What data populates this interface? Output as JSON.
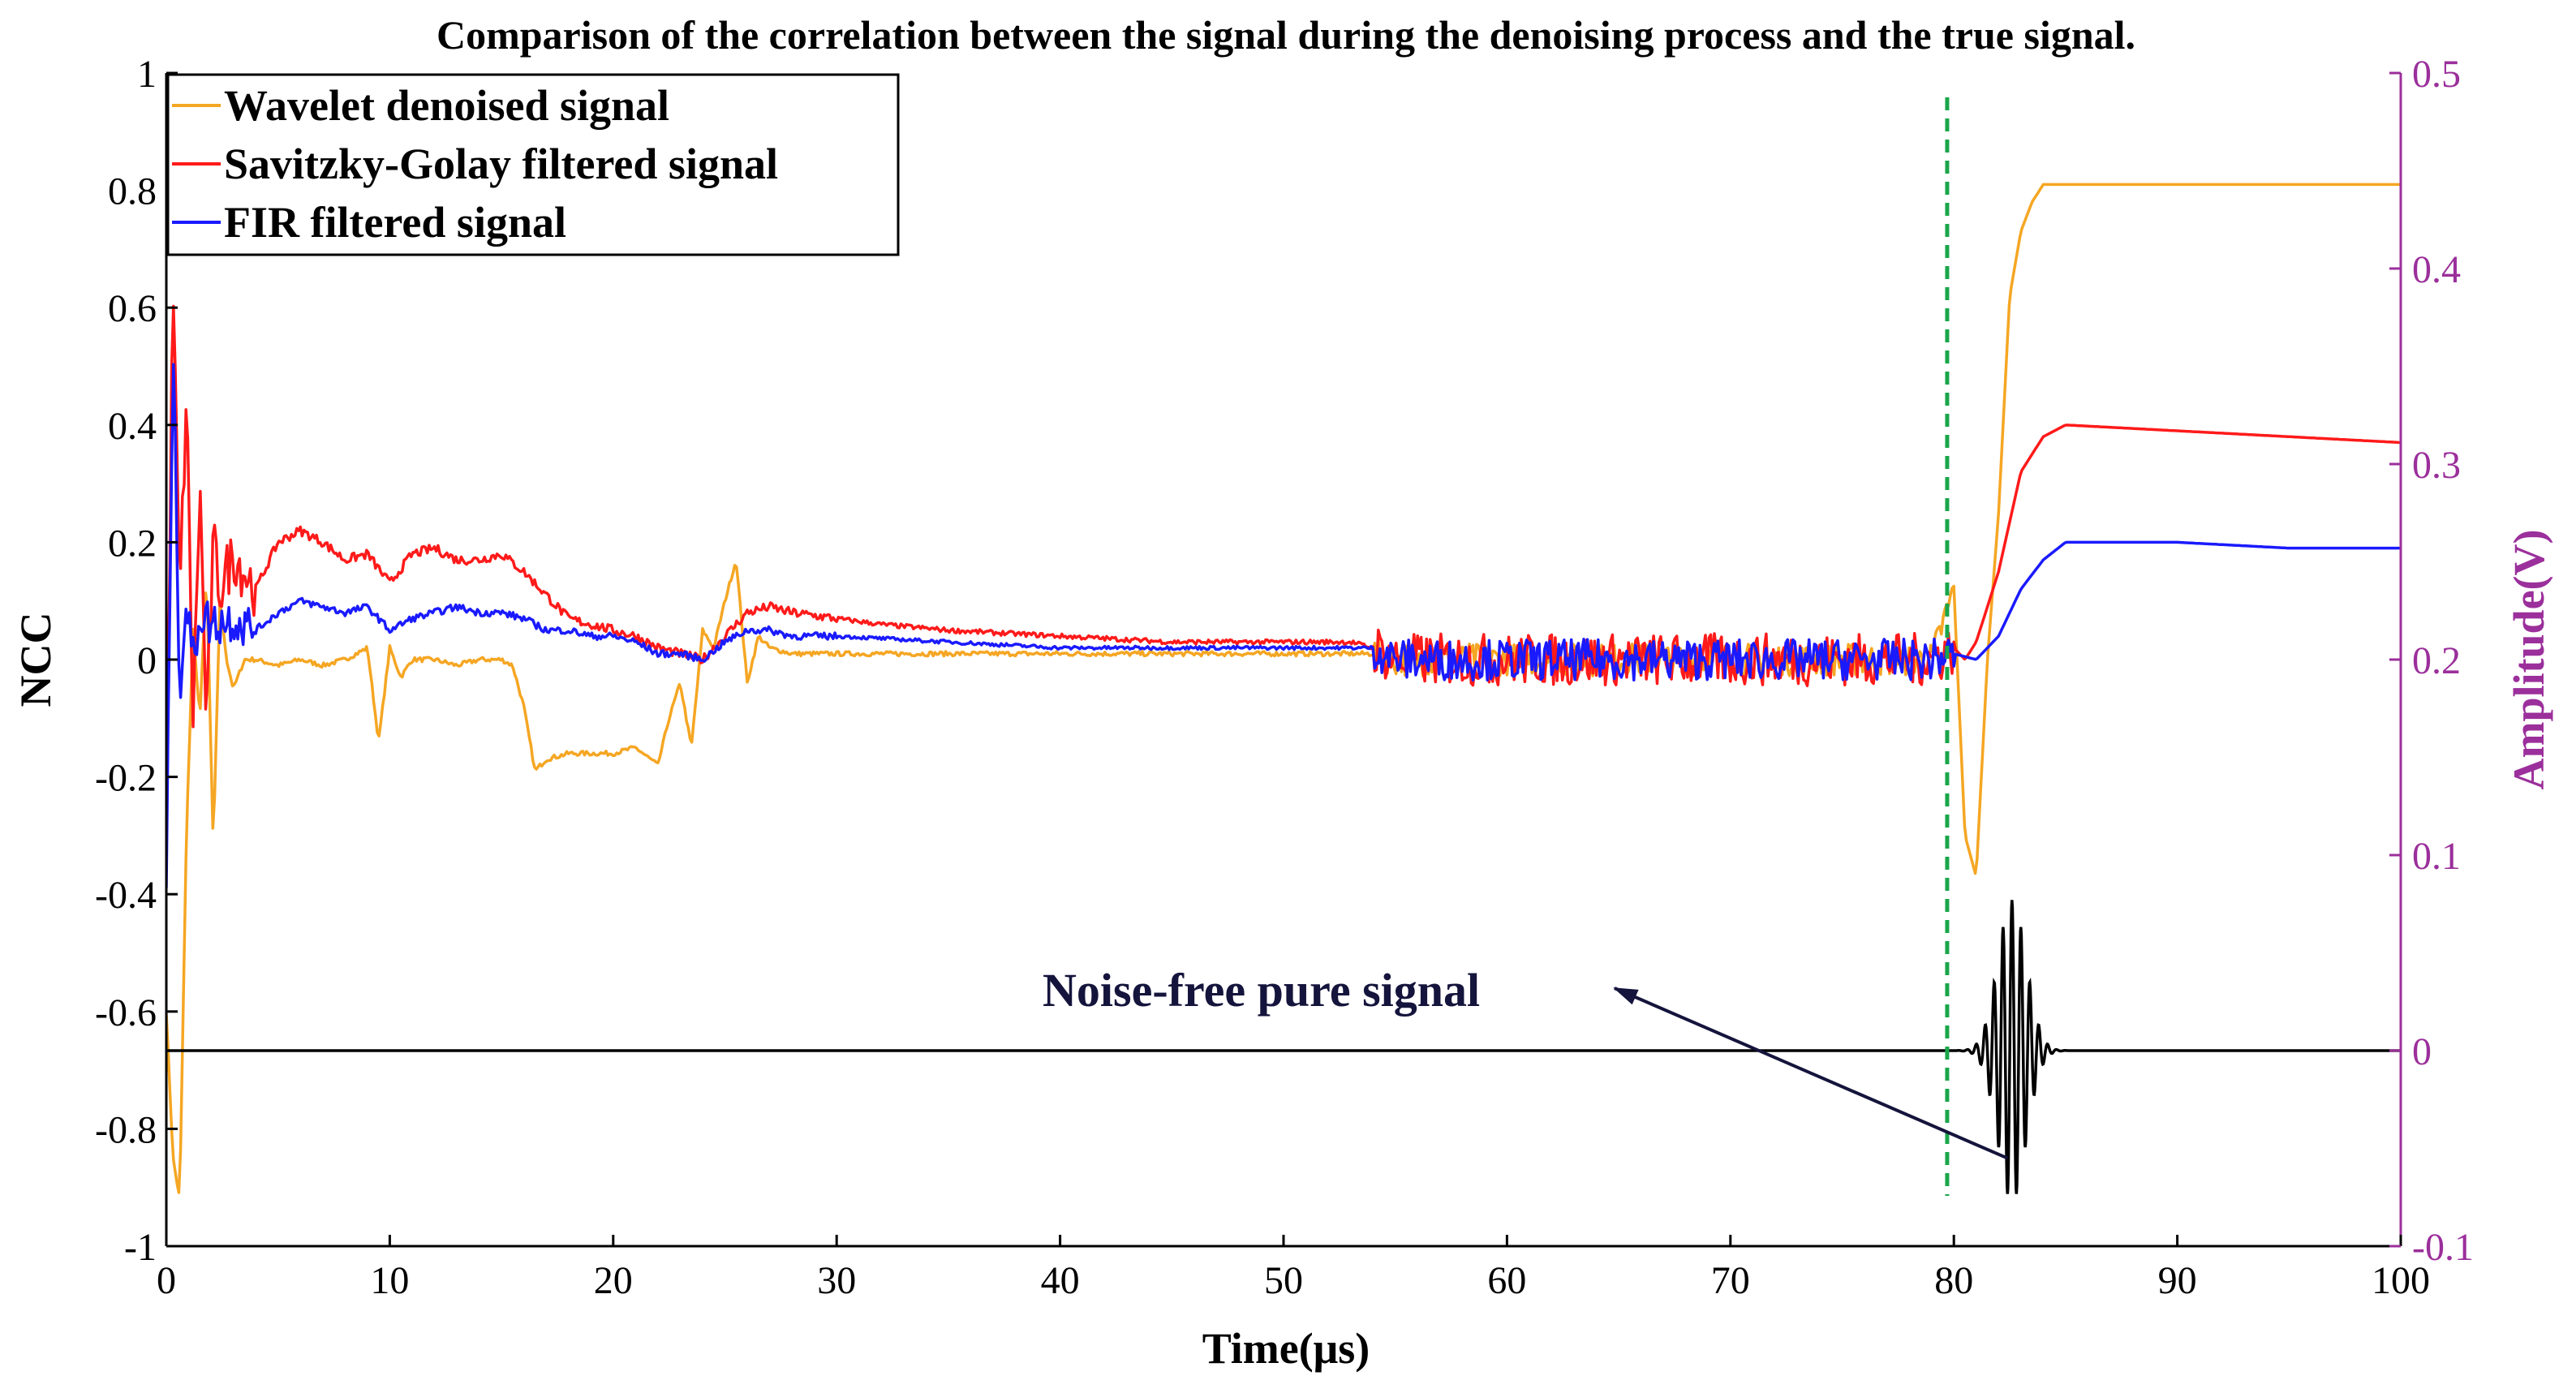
{
  "chart_data": {
    "type": "line",
    "title": "Comparison of the correlation between the signal during the denoising process and the true signal.",
    "xlabel": "Time(μs)",
    "ylabel": "NCC",
    "ylabel_right": "Amplitude(V)",
    "xlim": [
      0,
      100
    ],
    "ylim": [
      -1,
      1
    ],
    "ylim_right": [
      -0.1,
      0.5
    ],
    "x_ticks": [
      0,
      10,
      20,
      30,
      40,
      50,
      60,
      70,
      80,
      90,
      100
    ],
    "y_ticks": [
      -1,
      -0.8,
      -0.6,
      -0.4,
      -0.2,
      0,
      0.2,
      0.4,
      0.6,
      0.8,
      1
    ],
    "y_ticks_right": [
      -0.1,
      0,
      0.1,
      0.2,
      0.3,
      0.4,
      0.5
    ],
    "x_tick_labels": [
      "0",
      "10",
      "20",
      "30",
      "40",
      "50",
      "60",
      "70",
      "80",
      "90",
      "100"
    ],
    "y_tick_labels": [
      "-1",
      "-0.8",
      "-0.6",
      "-0.4",
      "-0.2",
      "0",
      "0.2",
      "0.4",
      "0.6",
      "0.8",
      "1"
    ],
    "y_tick_labels_right": [
      "-0.1",
      "0",
      "0.1",
      "0.2",
      "0.3",
      "0.4",
      "0.5"
    ],
    "legend_position": "top-left",
    "series": [
      {
        "name": "Wavelet denoised signal",
        "color": "#f5a623",
        "axis": "left",
        "x": [
          0,
          0.3,
          0.6,
          0.9,
          1.2,
          1.5,
          1.8,
          2.1,
          2.4,
          2.7,
          3.0,
          3.5,
          4,
          5,
          6,
          7,
          8,
          9,
          9.5,
          10,
          10.5,
          11,
          12,
          13,
          14,
          15,
          15.5,
          16,
          16.5,
          17,
          18,
          19,
          20,
          21,
          22,
          22.5,
          23,
          23.5,
          24,
          24.5,
          25,
          25.5,
          26,
          26.5,
          27,
          28,
          30,
          35,
          40,
          45,
          50,
          54,
          55,
          60,
          65,
          70,
          75,
          79,
          80,
          80.5,
          81,
          81.5,
          82,
          82.5,
          83,
          83.5,
          84,
          85,
          90,
          95,
          100
        ],
        "values": [
          -0.6,
          -0.85,
          -0.92,
          -0.3,
          0.05,
          -0.1,
          0.15,
          -0.32,
          0.1,
          0.0,
          -0.05,
          0.0,
          0.0,
          -0.01,
          0.0,
          -0.01,
          0.0,
          0.02,
          -0.14,
          0.02,
          -0.03,
          0.0,
          0.0,
          -0.01,
          0.0,
          0.0,
          -0.01,
          -0.08,
          -0.19,
          -0.17,
          -0.16,
          -0.16,
          -0.16,
          -0.15,
          -0.18,
          -0.1,
          -0.04,
          -0.15,
          0.05,
          0.02,
          0.1,
          0.17,
          -0.04,
          0.04,
          0.02,
          0.01,
          0.01,
          0.01,
          0.01,
          0.01,
          0.01,
          0.01,
          0.0,
          0.0,
          0.0,
          0.0,
          0.0,
          0.0,
          0.12,
          -0.3,
          -0.37,
          0.0,
          0.25,
          0.62,
          0.73,
          0.78,
          0.81,
          0.81,
          0.81,
          0.81,
          0.81
        ]
      },
      {
        "name": "Savitzky-Golay filtered signal",
        "color": "#ff1a1a",
        "axis": "left",
        "x": [
          0,
          0.3,
          0.6,
          0.9,
          1.2,
          1.5,
          1.8,
          2.1,
          2.4,
          3,
          4,
          5,
          6,
          7,
          8,
          9,
          10,
          11,
          12,
          13,
          14,
          15,
          16,
          17,
          18,
          19,
          20,
          21,
          22,
          23,
          24,
          25,
          26,
          27,
          28,
          30,
          32,
          35,
          40,
          45,
          50,
          53,
          54,
          55,
          60,
          65,
          70,
          75,
          79,
          80,
          80.5,
          81,
          82,
          83,
          84,
          85,
          90,
          95,
          100
        ],
        "values": [
          -0.3,
          0.65,
          0.1,
          0.45,
          -0.1,
          0.3,
          -0.12,
          0.2,
          0.12,
          0.18,
          0.12,
          0.2,
          0.22,
          0.2,
          0.17,
          0.18,
          0.13,
          0.18,
          0.19,
          0.17,
          0.17,
          0.18,
          0.15,
          0.11,
          0.07,
          0.06,
          0.05,
          0.04,
          0.02,
          0.01,
          0.0,
          0.04,
          0.08,
          0.09,
          0.08,
          0.07,
          0.06,
          0.05,
          0.04,
          0.03,
          0.03,
          0.03,
          0.02,
          0.0,
          0.0,
          0.0,
          0.0,
          0.0,
          0.0,
          0.02,
          0.0,
          0.03,
          0.15,
          0.32,
          0.38,
          0.4,
          0.39,
          0.38,
          0.37
        ]
      },
      {
        "name": "FIR filtered signal",
        "color": "#1a1aff",
        "axis": "left",
        "x": [
          0,
          0.3,
          0.6,
          0.9,
          1.2,
          1.5,
          2,
          3,
          4,
          5,
          6,
          7,
          8,
          9,
          10,
          11,
          12,
          13,
          14,
          15,
          16,
          17,
          18,
          19,
          20,
          21,
          22,
          23,
          24,
          25,
          26,
          27,
          28,
          30,
          35,
          40,
          45,
          50,
          53,
          54,
          55,
          60,
          65,
          70,
          75,
          79,
          80,
          81,
          82,
          83,
          84,
          85,
          90,
          95,
          100
        ],
        "values": [
          -0.4,
          0.55,
          -0.05,
          0.1,
          0.0,
          0.08,
          0.06,
          0.07,
          0.05,
          0.08,
          0.1,
          0.09,
          0.08,
          0.09,
          0.05,
          0.07,
          0.08,
          0.09,
          0.08,
          0.08,
          0.07,
          0.05,
          0.05,
          0.04,
          0.04,
          0.03,
          0.01,
          0.01,
          0.0,
          0.03,
          0.05,
          0.05,
          0.04,
          0.04,
          0.03,
          0.02,
          0.02,
          0.02,
          0.02,
          0.02,
          0.0,
          0.0,
          0.0,
          0.0,
          0.0,
          0.0,
          0.01,
          0.0,
          0.04,
          0.12,
          0.17,
          0.2,
          0.2,
          0.19,
          0.19
        ]
      },
      {
        "name": "Noise-free pure signal",
        "color": "#000000",
        "axis": "right",
        "type": "wave_packet",
        "baseline": 0,
        "center_x": 82.6,
        "peak_amplitude": 0.077,
        "envelope_width": 0.9,
        "frequency_mhz": 2.5,
        "x_range": [
          0,
          100
        ]
      }
    ],
    "vline": {
      "x": 79.7,
      "color": "#1aa64a",
      "style": "dashed"
    },
    "annotation": {
      "text": "Noise-free pure signal",
      "arrow_to_x": 82.4,
      "arrow_to_y_right": -0.055
    }
  }
}
